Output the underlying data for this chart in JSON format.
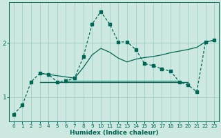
{
  "xlabel": "Humidex (Indice chaleur)",
  "ylabel": "",
  "bg_color": "#cce8e0",
  "grid_color": "#9ecfc4",
  "line_color": "#006655",
  "xlim": [
    -0.5,
    23.5
  ],
  "ylim": [
    0.55,
    2.75
  ],
  "xticks": [
    0,
    1,
    2,
    3,
    4,
    5,
    6,
    7,
    8,
    9,
    10,
    11,
    12,
    13,
    14,
    15,
    16,
    17,
    18,
    19,
    20,
    21,
    22,
    23
  ],
  "yticks": [
    1,
    2
  ],
  "line_dashed": {
    "x": [
      0,
      1,
      2,
      3,
      4,
      5,
      6,
      7,
      8,
      9,
      10,
      11,
      12,
      13,
      14,
      15,
      16,
      17,
      18,
      19,
      20,
      21,
      22,
      23
    ],
    "y": [
      0.68,
      0.85,
      1.28,
      1.44,
      1.42,
      1.28,
      1.3,
      1.35,
      1.75,
      2.35,
      2.58,
      2.35,
      2.02,
      2.02,
      1.88,
      1.62,
      1.58,
      1.52,
      1.48,
      1.28,
      1.22,
      1.1,
      2.02,
      2.05
    ]
  },
  "line_solid_upper": {
    "x": [
      3,
      7,
      8,
      9,
      10,
      11,
      12,
      13,
      14,
      15,
      16,
      17,
      18,
      19,
      20,
      21,
      22,
      23
    ],
    "y": [
      1.44,
      1.35,
      1.55,
      1.78,
      1.9,
      1.83,
      1.72,
      1.65,
      1.7,
      1.73,
      1.75,
      1.78,
      1.82,
      1.85,
      1.88,
      1.92,
      2.02,
      2.05
    ]
  },
  "line_solid_flat1": {
    "x": [
      3,
      20
    ],
    "y": [
      1.28,
      1.28
    ]
  },
  "line_solid_flat2": {
    "x": [
      6,
      19
    ],
    "y": [
      1.3,
      1.3
    ]
  }
}
